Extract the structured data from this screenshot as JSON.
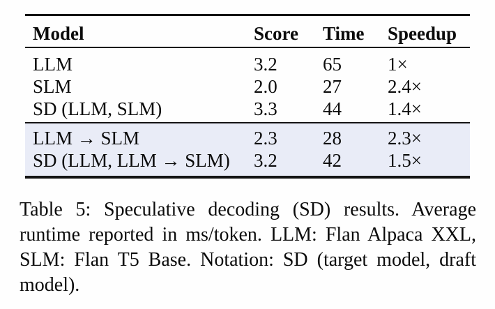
{
  "table": {
    "columns": [
      "Model",
      "Score",
      "Time",
      "Speedup"
    ],
    "rows": [
      {
        "model": "LLM",
        "score": "3.2",
        "time": "65",
        "speedup": "1×"
      },
      {
        "model": "SLM",
        "score": "2.0",
        "time": "27",
        "speedup": "2.4×"
      },
      {
        "model": "SD (LLM, SLM)",
        "score": "3.3",
        "time": "44",
        "speedup": "1.4×"
      }
    ],
    "highlighted_rows": [
      {
        "model": "LLM → SLM",
        "score": "2.3",
        "time": "28",
        "speedup": "2.3×"
      },
      {
        "model": "SD (LLM, LLM → SLM)",
        "score": "3.2",
        "time": "42",
        "speedup": "1.5×"
      }
    ],
    "highlight_color": "#e9ecf7",
    "rule_color": "#141414",
    "text_color": "#0b0b0b"
  },
  "caption": {
    "label": "Table 5:",
    "lines": [
      "Table 5: Speculative decoding (SD) results. Average",
      "runtime reported in ms/token. LLM: Flan Alpaca XXL,",
      "SLM: Flan T5 Base. Notation: SD (target model, draft",
      "model)."
    ],
    "full_text": "Table 5: Speculative decoding (SD) results. Average runtime reported in ms/token. LLM: Flan Alpaca XXL, SLM: Flan T5 Base. Notation: SD (target model, draft model)."
  }
}
